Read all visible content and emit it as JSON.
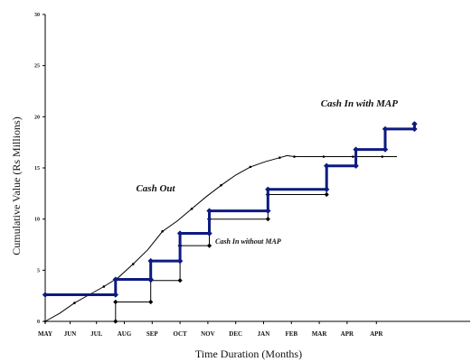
{
  "chart_data": {
    "type": "line",
    "xlabel": "Time Duration (Months)",
    "ylabel": "Cumulative Value   (Rs Millions)",
    "ylim": [
      0,
      30
    ],
    "xlim": [
      0,
      14.5
    ],
    "yticks": [
      0,
      5,
      10,
      15,
      20,
      25,
      30
    ],
    "month_labels": [
      {
        "label": "MAY",
        "x": 0
      },
      {
        "label": "JUN",
        "x": 0.85
      },
      {
        "label": "JUL",
        "x": 1.75
      },
      {
        "label": "AUG",
        "x": 2.7
      },
      {
        "label": "SEP",
        "x": 3.65
      },
      {
        "label": "OCT",
        "x": 4.6
      },
      {
        "label": "NOV",
        "x": 5.55
      },
      {
        "label": "DEC",
        "x": 6.5
      },
      {
        "label": "JAN",
        "x": 7.45
      },
      {
        "label": "FEB",
        "x": 8.4
      },
      {
        "label": "MAR",
        "x": 9.35
      },
      {
        "label": "APR",
        "x": 10.3
      },
      {
        "label": "APR",
        "x": 11.3
      }
    ],
    "series": [
      {
        "key": "cash_out",
        "name": "Cash Out",
        "color": "#000000",
        "points": [
          [
            0,
            0
          ],
          [
            0.5,
            0.8
          ],
          [
            1,
            1.8
          ],
          [
            1.5,
            2.6
          ],
          [
            2,
            3.4
          ],
          [
            2.5,
            4.3
          ],
          [
            3,
            5.6
          ],
          [
            3.5,
            7.0
          ],
          [
            4,
            8.8
          ],
          [
            4.5,
            9.8
          ],
          [
            5,
            11.0
          ],
          [
            5.5,
            12.2
          ],
          [
            6,
            13.3
          ],
          [
            6.5,
            14.3
          ],
          [
            7,
            15.1
          ],
          [
            7.5,
            15.6
          ],
          [
            8,
            16.0
          ],
          [
            8.25,
            16.2
          ],
          [
            8.5,
            16.1
          ],
          [
            9,
            16.1
          ],
          [
            9.5,
            16.1
          ],
          [
            10,
            16.1
          ],
          [
            10.5,
            16.1
          ],
          [
            11,
            16.1
          ],
          [
            11.5,
            16.1
          ],
          [
            12,
            16.1
          ]
        ]
      },
      {
        "key": "cash_in_without_map",
        "name": "Cash In without MAP",
        "color": "#000000",
        "points": [
          [
            2.4,
            0
          ],
          [
            2.4,
            1.9
          ],
          [
            3.6,
            1.9
          ],
          [
            3.6,
            4.0
          ],
          [
            4.6,
            4.0
          ],
          [
            4.6,
            7.4
          ],
          [
            5.6,
            7.4
          ],
          [
            5.6,
            10.0
          ],
          [
            7.6,
            10.0
          ],
          [
            7.6,
            12.4
          ],
          [
            9.6,
            12.4
          ],
          [
            9.6,
            15.2
          ],
          [
            10.6,
            15.2
          ],
          [
            10.6,
            16.8
          ],
          [
            11.6,
            16.8
          ],
          [
            11.6,
            18.8
          ],
          [
            12.6,
            18.8
          ],
          [
            12.6,
            19.3
          ]
        ]
      },
      {
        "key": "cash_in_with_map",
        "name": "Cash In with MAP",
        "color": "#0d1a80",
        "points": [
          [
            0,
            2.6
          ],
          [
            2.4,
            2.6
          ],
          [
            2.4,
            4.1
          ],
          [
            3.6,
            4.1
          ],
          [
            3.6,
            5.9
          ],
          [
            4.6,
            5.9
          ],
          [
            4.6,
            8.6
          ],
          [
            5.6,
            8.6
          ],
          [
            5.6,
            10.8
          ],
          [
            7.6,
            10.8
          ],
          [
            7.6,
            12.9
          ],
          [
            9.6,
            12.9
          ],
          [
            9.6,
            15.2
          ],
          [
            10.6,
            15.2
          ],
          [
            10.6,
            16.8
          ],
          [
            11.6,
            16.8
          ],
          [
            11.6,
            18.8
          ],
          [
            12.6,
            18.8
          ],
          [
            12.6,
            19.3
          ]
        ]
      }
    ],
    "annotations": [
      {
        "key": "cash_out",
        "text": "Cash Out",
        "x": 3.1,
        "y": 12.7
      },
      {
        "key": "cash_in_without_map",
        "text": "Cash In without MAP",
        "x": 5.8,
        "y": 7.6
      },
      {
        "key": "cash_in_with_map",
        "text": "Cash In with MAP",
        "x": 9.4,
        "y": 21.0
      }
    ]
  }
}
